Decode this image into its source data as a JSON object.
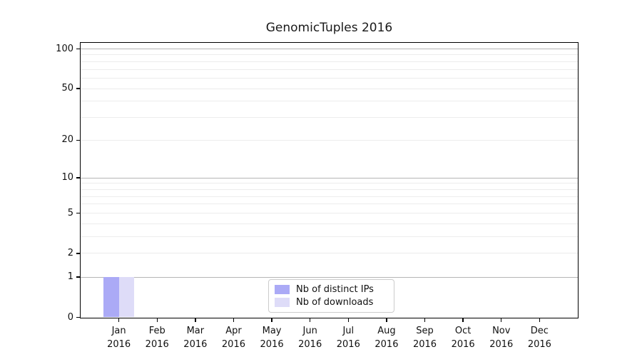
{
  "title": "GenomicTuples 2016",
  "chart_data": {
    "type": "bar",
    "title": "GenomicTuples 2016",
    "categories": [
      "Jan",
      "Feb",
      "Mar",
      "Apr",
      "May",
      "Jun",
      "Jul",
      "Aug",
      "Sep",
      "Oct",
      "Nov",
      "Dec"
    ],
    "x_year": "2016",
    "series": [
      {
        "name": "Nb of distinct IPs",
        "color": "#abaaf6",
        "values": [
          1,
          0,
          0,
          0,
          0,
          0,
          0,
          0,
          0,
          0,
          0,
          0
        ]
      },
      {
        "name": "Nb of downloads",
        "color": "#dedcf8",
        "values": [
          1,
          0,
          0,
          0,
          0,
          0,
          0,
          0,
          0,
          0,
          0,
          0
        ]
      }
    ],
    "xlabel": "",
    "ylabel": "",
    "y_scale": "log10(1+value)",
    "y_tick_values": [
      0,
      1,
      2,
      5,
      10,
      20,
      50,
      100
    ],
    "y_major_gridlines": [
      1,
      10,
      100
    ],
    "y_minor_gridlines": [
      2,
      3,
      4,
      5,
      6,
      7,
      8,
      9,
      20,
      30,
      40,
      50,
      60,
      70,
      80,
      90
    ],
    "ylim": [
      0,
      112
    ],
    "grid": true,
    "legend_position": "bottom-center",
    "colors": {
      "axis": "#000000",
      "major_grid": "#b5b5b5",
      "minor_grid": "#ececec",
      "tick_text": "#111111"
    }
  }
}
